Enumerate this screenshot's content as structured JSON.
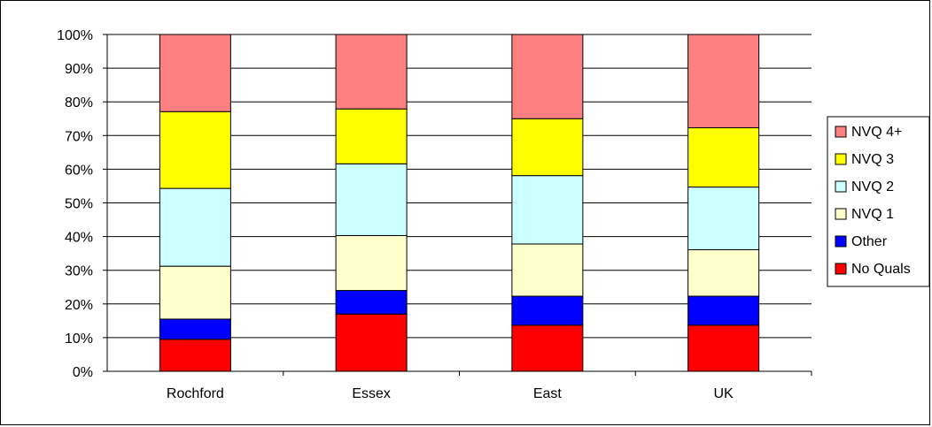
{
  "chart_data": {
    "type": "bar",
    "stacked": true,
    "percent_axis": true,
    "categories": [
      "Rochford",
      "Essex",
      "East",
      "UK"
    ],
    "ylim": [
      0,
      100
    ],
    "yticks": [
      "0%",
      "10%",
      "20%",
      "30%",
      "40%",
      "50%",
      "60%",
      "70%",
      "80%",
      "90%",
      "100%"
    ],
    "grid": true,
    "legend_position": "right",
    "series": [
      {
        "name": "No Quals",
        "color": "#ff0000",
        "values": [
          9.5,
          17,
          13.7,
          13.7
        ]
      },
      {
        "name": "Other",
        "color": "#0000ff",
        "values": [
          6,
          7,
          8.6,
          8.6
        ]
      },
      {
        "name": "NVQ 1",
        "color": "#ffffcc",
        "values": [
          15.7,
          16.3,
          15.5,
          13.8
        ]
      },
      {
        "name": "NVQ 2",
        "color": "#ccffff",
        "values": [
          23.1,
          21.3,
          20.3,
          18.6
        ]
      },
      {
        "name": "NVQ 3",
        "color": "#ffff00",
        "values": [
          22.8,
          16.3,
          16.9,
          17.6
        ]
      },
      {
        "name": "NVQ 4+",
        "color": "#ff8080",
        "values": [
          22.9,
          22.1,
          25,
          27.7
        ]
      }
    ]
  }
}
